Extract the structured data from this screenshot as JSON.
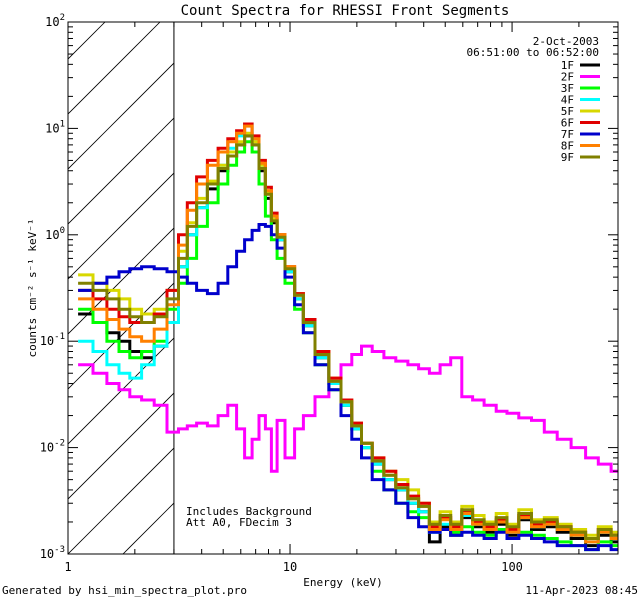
{
  "chart_data": {
    "type": "line",
    "title": "Count Spectra for RHESSI Front Segments",
    "xlabel": "Energy (keV)",
    "ylabel": "counts cm⁻² s⁻¹ keV⁻¹",
    "xscale": "log",
    "yscale": "log",
    "xlim": [
      1,
      300
    ],
    "ylim": [
      0.001,
      100
    ],
    "x_ticks": [
      {
        "v": 1,
        "label": "1"
      },
      {
        "v": 10,
        "label": "10"
      },
      {
        "v": 100,
        "label": "100"
      }
    ],
    "y_ticks": [
      {
        "v": 0.001,
        "mant": "10",
        "exp": "-3"
      },
      {
        "v": 0.01,
        "mant": "10",
        "exp": "-2"
      },
      {
        "v": 0.1,
        "mant": "10",
        "exp": "-1"
      },
      {
        "v": 1,
        "mant": "10",
        "exp": "0"
      },
      {
        "v": 10,
        "mant": "10",
        "exp": "1"
      },
      {
        "v": 100,
        "mant": "10",
        "exp": "2"
      }
    ],
    "excluded_region_keV": [
      1,
      3
    ],
    "date": "2-Oct-2003",
    "time_range": "06:51:00 to 06:52:00",
    "annotation": [
      "Includes Background",
      "Att A0, FDecim 3"
    ],
    "energies_keV": [
      1.2,
      1.4,
      1.6,
      1.8,
      2.0,
      2.3,
      2.6,
      3.0,
      3.3,
      3.6,
      4.0,
      4.5,
      5.0,
      5.5,
      6.0,
      6.5,
      7.0,
      7.5,
      8.0,
      8.5,
      9.0,
      10,
      11,
      12,
      14,
      16,
      18,
      20,
      22,
      25,
      28,
      32,
      36,
      40,
      45,
      50,
      56,
      63,
      70,
      80,
      90,
      100,
      115,
      130,
      150,
      170,
      200,
      230,
      260,
      300
    ],
    "series": [
      {
        "name": "1F",
        "color": "#000000",
        "values": [
          0.18,
          0.15,
          0.12,
          0.1,
          0.08,
          0.07,
          0.09,
          0.15,
          0.5,
          1.0,
          1.8,
          2.7,
          4.0,
          5.5,
          7.0,
          8.5,
          7.0,
          4.0,
          2.2,
          1.3,
          0.9,
          0.45,
          0.25,
          0.14,
          0.07,
          0.04,
          0.025,
          0.015,
          0.01,
          0.007,
          0.005,
          0.004,
          0.003,
          0.0025,
          0.0013,
          0.0018,
          0.0015,
          0.0022,
          0.0018,
          0.0016,
          0.0019,
          0.0015,
          0.0021,
          0.0017,
          0.0018,
          0.0016,
          0.0014,
          0.0012,
          0.0015,
          0.0013
        ]
      },
      {
        "name": "2F",
        "color": "#ff00ff",
        "values": [
          0.06,
          0.05,
          0.04,
          0.035,
          0.03,
          0.028,
          0.025,
          0.014,
          0.015,
          0.016,
          0.017,
          0.016,
          0.02,
          0.025,
          0.015,
          0.008,
          0.012,
          0.02,
          0.015,
          0.006,
          0.018,
          0.008,
          0.015,
          0.02,
          0.03,
          0.045,
          0.06,
          0.075,
          0.09,
          0.08,
          0.07,
          0.065,
          0.06,
          0.055,
          0.05,
          0.06,
          0.07,
          0.03,
          0.028,
          0.025,
          0.022,
          0.021,
          0.019,
          0.018,
          0.014,
          0.012,
          0.01,
          0.008,
          0.007,
          0.006
        ]
      },
      {
        "name": "3F",
        "color": "#00ff00",
        "values": [
          0.2,
          0.15,
          0.1,
          0.08,
          0.07,
          0.08,
          0.1,
          0.2,
          0.35,
          0.6,
          1.2,
          2.0,
          3.0,
          4.5,
          6.0,
          7.5,
          6.0,
          3.0,
          1.5,
          0.9,
          0.6,
          0.35,
          0.2,
          0.12,
          0.06,
          0.035,
          0.025,
          0.015,
          0.01,
          0.006,
          0.004,
          0.003,
          0.0025,
          0.0022,
          0.0018,
          0.0017,
          0.0016,
          0.0018,
          0.0016,
          0.0015,
          0.0017,
          0.0014,
          0.0016,
          0.0015,
          0.0014,
          0.0013,
          0.0012,
          0.0011,
          0.0013,
          0.0012
        ]
      },
      {
        "name": "4F",
        "color": "#00ffff",
        "values": [
          0.1,
          0.08,
          0.06,
          0.05,
          0.045,
          0.06,
          0.09,
          0.15,
          0.5,
          1.0,
          1.8,
          3.0,
          4.5,
          6.5,
          8.5,
          11.0,
          8.0,
          4.5,
          2.5,
          1.4,
          0.9,
          0.45,
          0.25,
          0.14,
          0.07,
          0.04,
          0.025,
          0.015,
          0.01,
          0.007,
          0.005,
          0.004,
          0.003,
          0.0025,
          0.0016,
          0.0019,
          0.0017,
          0.0023,
          0.0019,
          0.0017,
          0.002,
          0.0016,
          0.0022,
          0.0018,
          0.0019,
          0.0017,
          0.0015,
          0.0013,
          0.0016,
          0.0014
        ]
      },
      {
        "name": "5F",
        "color": "#d8d800",
        "values": [
          0.42,
          0.35,
          0.3,
          0.25,
          0.2,
          0.18,
          0.2,
          0.3,
          0.7,
          1.3,
          2.2,
          3.2,
          4.5,
          6.0,
          7.5,
          9.0,
          7.5,
          4.5,
          2.5,
          1.4,
          1.0,
          0.5,
          0.28,
          0.15,
          0.08,
          0.045,
          0.028,
          0.017,
          0.011,
          0.008,
          0.006,
          0.005,
          0.004,
          0.003,
          0.002,
          0.0025,
          0.002,
          0.0028,
          0.0023,
          0.002,
          0.0024,
          0.0019,
          0.0026,
          0.0021,
          0.0022,
          0.0019,
          0.0017,
          0.0015,
          0.0018,
          0.0016
        ]
      },
      {
        "name": "6F",
        "color": "#e00000",
        "values": [
          0.3,
          0.25,
          0.2,
          0.17,
          0.15,
          0.15,
          0.18,
          0.3,
          1.0,
          2.0,
          3.5,
          5.0,
          6.5,
          8.0,
          9.5,
          11.0,
          8.5,
          5.0,
          2.8,
          1.6,
          1.0,
          0.5,
          0.28,
          0.16,
          0.08,
          0.045,
          0.028,
          0.017,
          0.011,
          0.008,
          0.006,
          0.0045,
          0.0035,
          0.003,
          0.0018,
          0.0022,
          0.0018,
          0.0025,
          0.002,
          0.0018,
          0.0021,
          0.0017,
          0.0023,
          0.0019,
          0.002,
          0.0018,
          0.0016,
          0.0014,
          0.0017,
          0.0015
        ]
      },
      {
        "name": "7F",
        "color": "#0000cc",
        "values": [
          0.3,
          0.35,
          0.4,
          0.45,
          0.48,
          0.5,
          0.48,
          0.45,
          0.4,
          0.35,
          0.3,
          0.28,
          0.35,
          0.5,
          0.7,
          0.9,
          1.1,
          1.25,
          1.2,
          1.0,
          0.75,
          0.4,
          0.22,
          0.12,
          0.06,
          0.035,
          0.02,
          0.012,
          0.008,
          0.005,
          0.004,
          0.003,
          0.0022,
          0.0018,
          0.0016,
          0.0017,
          0.0015,
          0.0016,
          0.0015,
          0.0014,
          0.0016,
          0.0014,
          0.0015,
          0.0014,
          0.0013,
          0.0012,
          0.0012,
          0.0011,
          0.0012,
          0.0011
        ]
      },
      {
        "name": "8F",
        "color": "#ff8000",
        "values": [
          0.25,
          0.2,
          0.16,
          0.13,
          0.11,
          0.1,
          0.13,
          0.22,
          0.8,
          1.7,
          3.0,
          4.5,
          6.0,
          7.5,
          9.0,
          10.5,
          8.0,
          4.7,
          2.6,
          1.5,
          1.0,
          0.5,
          0.27,
          0.15,
          0.075,
          0.042,
          0.027,
          0.016,
          0.011,
          0.0075,
          0.0055,
          0.0042,
          0.0033,
          0.0028,
          0.0017,
          0.0021,
          0.0017,
          0.0024,
          0.0019,
          0.0017,
          0.002,
          0.0016,
          0.0022,
          0.0018,
          0.0019,
          0.0017,
          0.0015,
          0.0013,
          0.0016,
          0.0014
        ]
      },
      {
        "name": "9F",
        "color": "#808000",
        "values": [
          0.35,
          0.3,
          0.25,
          0.2,
          0.17,
          0.15,
          0.17,
          0.25,
          0.6,
          1.2,
          2.0,
          3.0,
          4.2,
          5.5,
          7.0,
          8.5,
          7.0,
          4.2,
          2.4,
          1.35,
          0.95,
          0.48,
          0.27,
          0.15,
          0.075,
          0.042,
          0.027,
          0.016,
          0.011,
          0.0075,
          0.0055,
          0.0042,
          0.0033,
          0.0028,
          0.0019,
          0.0023,
          0.0019,
          0.0026,
          0.0021,
          0.0019,
          0.0022,
          0.0018,
          0.0024,
          0.002,
          0.0021,
          0.0018,
          0.0016,
          0.0014,
          0.0017,
          0.0015
        ]
      }
    ]
  },
  "footer": {
    "left": "Generated by hsi_min_spectra_plot.pro",
    "right": "11-Apr-2023 08:45"
  }
}
